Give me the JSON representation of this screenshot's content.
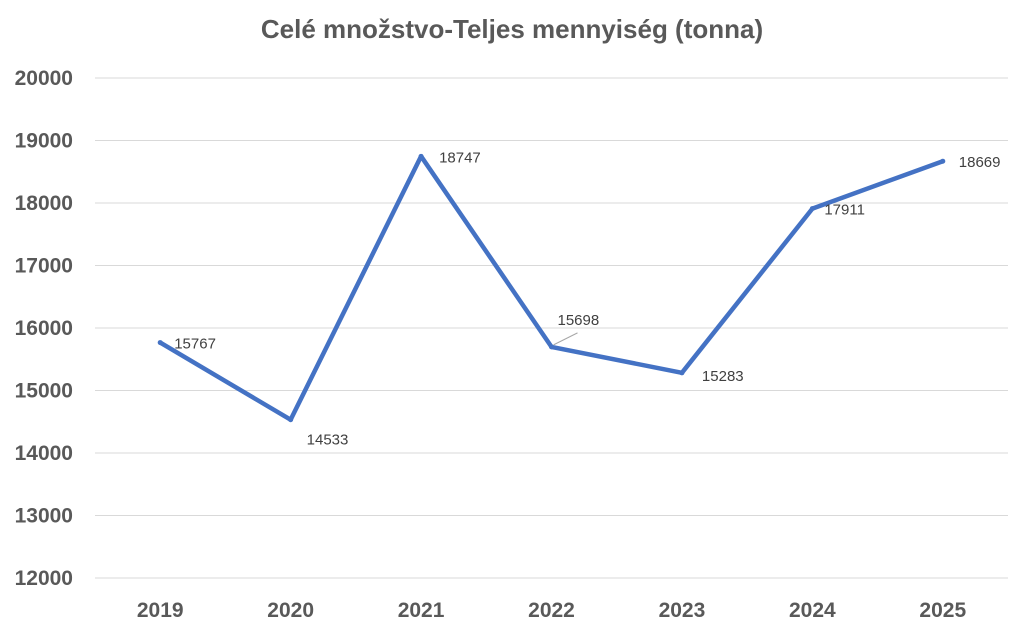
{
  "chart_data": {
    "type": "line",
    "title": "Celé množstvo-Teljes mennyiség (tonna)",
    "xlabel": "",
    "ylabel": "",
    "categories": [
      "2019",
      "2020",
      "2021",
      "2022",
      "2023",
      "2024",
      "2025"
    ],
    "series": [
      {
        "values": [
          15767,
          14533,
          18747,
          15698,
          15283,
          17911,
          18669
        ],
        "color": "#4472c4"
      }
    ],
    "data_labels": [
      "15767",
      "14533",
      "18747",
      "15698",
      "15283",
      "17911",
      "18669"
    ],
    "ylim": [
      12000,
      20000
    ],
    "yticks": [
      "12000",
      "13000",
      "14000",
      "15000",
      "16000",
      "17000",
      "18000",
      "19000",
      "20000"
    ],
    "grid": true,
    "legend": "none"
  }
}
